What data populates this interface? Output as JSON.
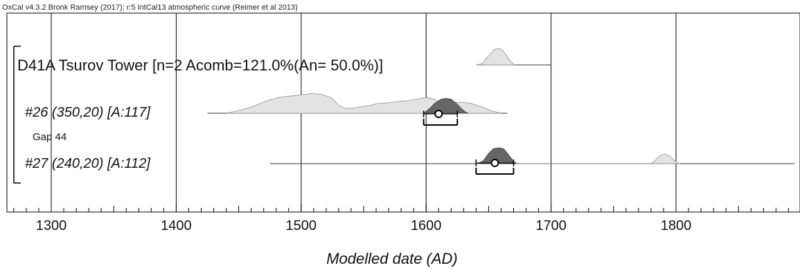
{
  "header": {
    "caption": "OxCal v4.3.2 Bronk Ramsey (2017); r:5 IntCal13 atmospheric curve (Reimer et al 2013)"
  },
  "chart_data": {
    "type": "area",
    "title": "",
    "xlabel": "Modelled date (AD)",
    "xlim": [
      1265,
      1895
    ],
    "xticks": [
      1300,
      1400,
      1500,
      1600,
      1700,
      1800
    ],
    "xtick_labels": [
      "1300",
      "1400",
      "1500",
      "1600",
      "1700",
      "1800"
    ],
    "grid": true,
    "rows": [
      {
        "label": "D41A Tsurov Tower [n=2 Acomb=121.0%(An= 50.0%)]",
        "kind": "combine",
        "line_range": [
          1640,
          1700
        ],
        "posterior": [
          [
            1640,
            0
          ],
          [
            1645,
            0.08
          ],
          [
            1650,
            0.55
          ],
          [
            1655,
            0.95
          ],
          [
            1658,
            1.0
          ],
          [
            1661,
            0.9
          ],
          [
            1664,
            0.6
          ],
          [
            1667,
            0.25
          ],
          [
            1670,
            0.05
          ],
          [
            1672,
            0
          ]
        ]
      },
      {
        "label": "#26 (350,20) [A:117]",
        "kind": "date",
        "line_range": [
          1425,
          1665
        ],
        "prior": [
          [
            1440,
            0
          ],
          [
            1448,
            0.08
          ],
          [
            1458,
            0.2
          ],
          [
            1466,
            0.35
          ],
          [
            1474,
            0.5
          ],
          [
            1482,
            0.6
          ],
          [
            1490,
            0.65
          ],
          [
            1500,
            0.7
          ],
          [
            1508,
            0.75
          ],
          [
            1516,
            0.72
          ],
          [
            1524,
            0.6
          ],
          [
            1530,
            0.3
          ],
          [
            1536,
            0.18
          ],
          [
            1545,
            0.22
          ],
          [
            1555,
            0.3
          ],
          [
            1562,
            0.38
          ],
          [
            1570,
            0.4
          ],
          [
            1578,
            0.45
          ],
          [
            1586,
            0.48
          ],
          [
            1594,
            0.55
          ],
          [
            1600,
            0.6
          ],
          [
            1606,
            0.55
          ],
          [
            1612,
            0.4
          ],
          [
            1620,
            0.4
          ],
          [
            1628,
            0.42
          ],
          [
            1636,
            0.38
          ],
          [
            1644,
            0.25
          ],
          [
            1652,
            0.1
          ],
          [
            1660,
            0
          ]
        ],
        "posterior": [
          [
            1598,
            0
          ],
          [
            1603,
            0.3
          ],
          [
            1607,
            0.6
          ],
          [
            1612,
            0.85
          ],
          [
            1616,
            0.9
          ],
          [
            1620,
            0.85
          ],
          [
            1624,
            0.6
          ],
          [
            1628,
            0.3
          ],
          [
            1632,
            0.05
          ],
          [
            1634,
            0
          ]
        ],
        "circle": 1610,
        "range": [
          1598,
          1625
        ]
      },
      {
        "label": "Gap 44",
        "kind": "gap"
      },
      {
        "label": "#27 (240,20) [A:112]",
        "kind": "date",
        "line_range": [
          1475,
          1895
        ],
        "prior": [
          [
            1640,
            0
          ],
          [
            1645,
            0.15
          ],
          [
            1650,
            0.6
          ],
          [
            1655,
            0.95
          ],
          [
            1659,
            1.0
          ],
          [
            1663,
            0.9
          ],
          [
            1667,
            0.5
          ],
          [
            1671,
            0.1
          ],
          [
            1675,
            0
          ],
          [
            1780,
            0
          ],
          [
            1783,
            0.2
          ],
          [
            1787,
            0.55
          ],
          [
            1791,
            0.7
          ],
          [
            1795,
            0.55
          ],
          [
            1799,
            0.2
          ],
          [
            1802,
            0
          ]
        ],
        "posterior": [
          [
            1642,
            0
          ],
          [
            1646,
            0.2
          ],
          [
            1650,
            0.65
          ],
          [
            1654,
            0.95
          ],
          [
            1658,
            1.0
          ],
          [
            1662,
            0.95
          ],
          [
            1666,
            0.55
          ],
          [
            1670,
            0.1
          ],
          [
            1672,
            0
          ]
        ],
        "circle": 1655,
        "range": [
          1640,
          1670
        ]
      }
    ]
  },
  "colors": {
    "prior_fill": "#e3e3e3",
    "prior_stroke": "#8f8f8f",
    "posterior_fill": "#666666",
    "posterior_stroke": "#3a3a3a",
    "line": "#333333",
    "grid": "#000000"
  }
}
